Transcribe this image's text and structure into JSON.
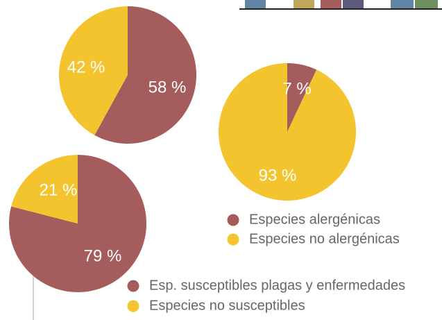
{
  "colors": {
    "red": "#a45c5d",
    "yellow": "#f3c42e",
    "text": "#666666",
    "top_strip": [
      "#5f84a4",
      "#ffffff",
      "#c0a55a",
      "#a45c5d",
      "#5c5b7b",
      "#ffffff",
      "#5f84a4",
      "#6f8f5f"
    ]
  },
  "chart_data": [
    {
      "type": "pie",
      "title": "",
      "slices": [
        {
          "label": "58 %",
          "value": 58,
          "color": "#a45c5d"
        },
        {
          "label": "42 %",
          "value": 42,
          "color": "#f3c42e"
        }
      ],
      "legend": []
    },
    {
      "type": "pie",
      "title": "",
      "slices": [
        {
          "label": "7 %",
          "value": 7,
          "color": "#a45c5d"
        },
        {
          "label": "93 %",
          "value": 93,
          "color": "#f3c42e"
        }
      ],
      "legend": [
        {
          "label": "Especies alergénicas",
          "color": "#a45c5d"
        },
        {
          "label": "Especies no alergénicas",
          "color": "#f3c42e"
        }
      ]
    },
    {
      "type": "pie",
      "title": "",
      "slices": [
        {
          "label": "79 %",
          "value": 79,
          "color": "#a45c5d"
        },
        {
          "label": "21 %",
          "value": 21,
          "color": "#f3c42e"
        }
      ],
      "legend": [
        {
          "label": "Esp. susceptibles plagas y enfermedades",
          "color": "#a45c5d"
        },
        {
          "label": "Especies no susceptibles",
          "color": "#f3c42e"
        }
      ]
    }
  ]
}
